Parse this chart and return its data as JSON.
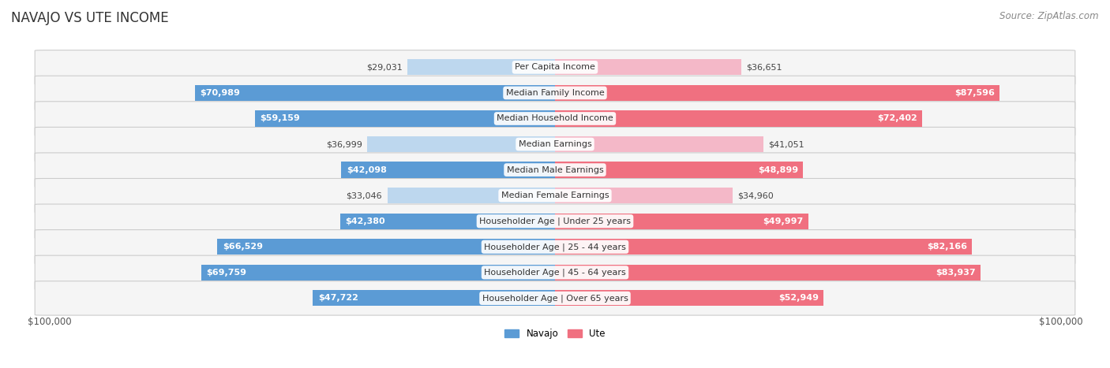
{
  "title": "NAVAJO VS UTE INCOME",
  "source": "Source: ZipAtlas.com",
  "categories": [
    "Per Capita Income",
    "Median Family Income",
    "Median Household Income",
    "Median Earnings",
    "Median Male Earnings",
    "Median Female Earnings",
    "Householder Age | Under 25 years",
    "Householder Age | 25 - 44 years",
    "Householder Age | 45 - 64 years",
    "Householder Age | Over 65 years"
  ],
  "navajo_values": [
    29031,
    70989,
    59159,
    36999,
    42098,
    33046,
    42380,
    66529,
    69759,
    47722
  ],
  "ute_values": [
    36651,
    87596,
    72402,
    41051,
    48899,
    34960,
    49997,
    82166,
    83937,
    52949
  ],
  "max_val": 100000,
  "navajo_color_strong": "#5b9bd5",
  "navajo_color_light": "#bdd7ee",
  "ute_color_strong": "#f07080",
  "ute_color_light": "#f4b8c8",
  "navajo_label": "Navajo",
  "ute_label": "Ute",
  "background_color": "#ffffff",
  "row_bg_color": "#f5f5f5",
  "bar_height": 0.62,
  "x_label_left": "$100,000",
  "x_label_right": "$100,000",
  "title_fontsize": 12,
  "source_fontsize": 8.5,
  "value_fontsize": 8,
  "category_fontsize": 8,
  "legend_fontsize": 8.5,
  "strong_threshold": 0.42
}
